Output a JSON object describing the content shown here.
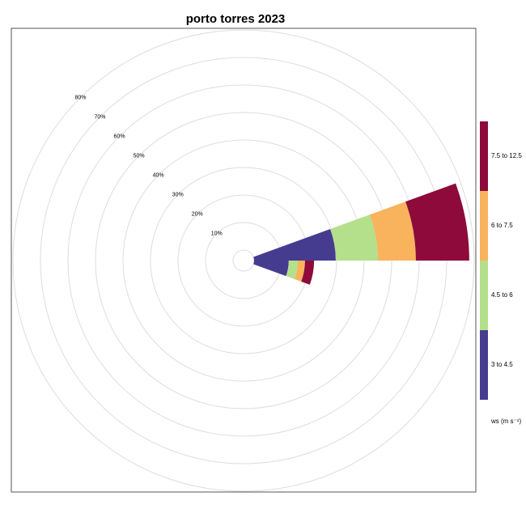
{
  "chart_data": {
    "type": "windrose",
    "title": "porto torres 2023",
    "x": [
      80,
      100
    ],
    "series": [
      {
        "name": "3 to 4.5",
        "color": "#463c8f",
        "values": [
          29.7,
          12.6
        ]
      },
      {
        "name": "4.5 to 6",
        "color": "#b4df8b",
        "values": [
          15.3,
          3.3
        ]
      },
      {
        "name": "6 to 7.5",
        "color": "#f8b35c",
        "values": [
          13.8,
          2.6
        ]
      },
      {
        "name": "7.5 to 12.5",
        "color": "#8d0a3b",
        "values": [
          19.4,
          3.3
        ]
      }
    ],
    "ylim": [
      0,
      80
    ],
    "yticks": [
      {
        "value": 10,
        "label": "10%"
      },
      {
        "value": 20,
        "label": "20%"
      },
      {
        "value": 30,
        "label": "30%"
      },
      {
        "value": 40,
        "label": "40%"
      },
      {
        "value": 50,
        "label": "50%"
      },
      {
        "value": 60,
        "label": "60%"
      },
      {
        "value": 70,
        "label": "70%"
      },
      {
        "value": 80,
        "label": "80%"
      }
    ],
    "grid": true,
    "legend_title": "ws (m s⁻¹)"
  }
}
